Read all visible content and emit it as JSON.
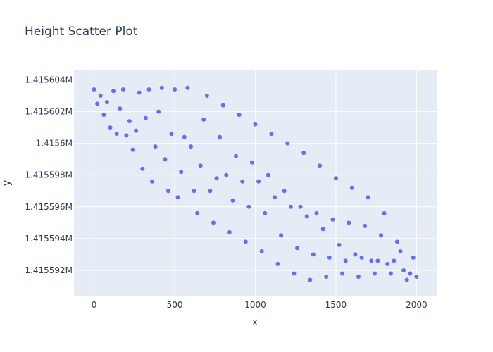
{
  "chart_data": {
    "type": "scatter",
    "title": "Height Scatter Plot",
    "xlabel": "x",
    "ylabel": "y",
    "xlim": [
      -125,
      2125
    ],
    "ylim": [
      1415590.4,
      1415604.6
    ],
    "x_ticks": [
      0,
      500,
      1000,
      1500,
      2000
    ],
    "x_tick_labels": [
      "0",
      "500",
      "1000",
      "1500",
      "2000"
    ],
    "y_ticks": [
      1415592,
      1415594,
      1415596,
      1415598,
      1415600,
      1415602,
      1415604
    ],
    "y_tick_labels": [
      "1.415592M",
      "1.415594M",
      "1.415596M",
      "1.415598M",
      "1.4156M",
      "1.415602M",
      "1.415604M"
    ],
    "grid": true,
    "legend": "none",
    "colors": {
      "marker": "#636efa",
      "plot_bg": "#e5ecf6",
      "grid": "#ffffff",
      "text": "#2a3f5f"
    },
    "series": [
      {
        "x": [
          0,
          20,
          40,
          60,
          80,
          100,
          120,
          140,
          160,
          180,
          200,
          220,
          240,
          260,
          280,
          300,
          320,
          340,
          360,
          380,
          400,
          420,
          440,
          460,
          480,
          500,
          520,
          540,
          560,
          580,
          600,
          620,
          640,
          660,
          680,
          700,
          720,
          740,
          760,
          780,
          800,
          820,
          840,
          860,
          880,
          900,
          920,
          940,
          960,
          980,
          1000,
          1020,
          1040,
          1060,
          1080,
          1100,
          1120,
          1140,
          1160,
          1180,
          1200,
          1220,
          1240,
          1260,
          1280,
          1300,
          1320,
          1340,
          1360,
          1380,
          1400,
          1420,
          1440,
          1460,
          1480,
          1500,
          1520,
          1540,
          1560,
          1580,
          1600,
          1620,
          1640,
          1660,
          1680,
          1700,
          1720,
          1740,
          1760,
          1780,
          1800,
          1820,
          1840,
          1860,
          1880,
          1900,
          1920,
          1940,
          1960,
          1980,
          2000
        ],
        "y": [
          1415603.4,
          1415602.5,
          1415603.0,
          1415601.8,
          1415602.6,
          1415601.0,
          1415603.3,
          1415600.6,
          1415602.2,
          1415603.4,
          1415600.5,
          1415601.4,
          1415599.6,
          1415600.8,
          1415603.2,
          1415598.4,
          1415601.6,
          1415603.4,
          1415597.6,
          1415599.8,
          1415602.0,
          1415603.5,
          1415599.0,
          1415597.0,
          1415600.6,
          1415603.4,
          1415596.6,
          1415598.2,
          1415600.4,
          1415603.5,
          1415599.8,
          1415597.0,
          1415595.6,
          1415598.6,
          1415601.5,
          1415603.0,
          1415597.0,
          1415595.0,
          1415597.8,
          1415600.4,
          1415602.4,
          1415598.0,
          1415594.4,
          1415596.4,
          1415599.2,
          1415601.8,
          1415597.6,
          1415593.8,
          1415596.0,
          1415598.8,
          1415601.2,
          1415597.6,
          1415593.2,
          1415595.6,
          1415598.0,
          1415600.6,
          1415596.6,
          1415592.4,
          1415594.2,
          1415597.0,
          1415600.0,
          1415596.0,
          1415591.8,
          1415593.4,
          1415596.0,
          1415599.4,
          1415595.4,
          1415591.4,
          1415593.0,
          1415595.6,
          1415598.6,
          1415594.6,
          1415591.6,
          1415592.8,
          1415595.2,
          1415597.8,
          1415593.6,
          1415591.8,
          1415592.6,
          1415595.0,
          1415597.2,
          1415593.0,
          1415591.6,
          1415592.8,
          1415594.8,
          1415596.6,
          1415592.6,
          1415591.8,
          1415592.6,
          1415594.2,
          1415595.6,
          1415592.4,
          1415591.8,
          1415592.6,
          1415593.8,
          1415593.2,
          1415592.0,
          1415591.4,
          1415591.8,
          1415592.8,
          1415591.6
        ]
      }
    ]
  }
}
